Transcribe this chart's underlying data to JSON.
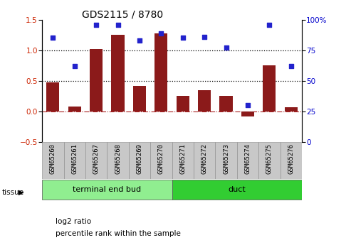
{
  "title": "GDS2115 / 8780",
  "samples": [
    "GSM65260",
    "GSM65261",
    "GSM65267",
    "GSM65268",
    "GSM65269",
    "GSM65270",
    "GSM65271",
    "GSM65272",
    "GSM65273",
    "GSM65274",
    "GSM65275",
    "GSM65276"
  ],
  "log2_ratio": [
    0.48,
    0.08,
    1.02,
    1.25,
    0.42,
    1.28,
    0.25,
    0.35,
    0.25,
    -0.08,
    0.75,
    0.07
  ],
  "percentile_rank": [
    85,
    62,
    96,
    96,
    83,
    89,
    85,
    86,
    77,
    30,
    96,
    62
  ],
  "ylim_left": [
    -0.5,
    1.5
  ],
  "ylim_right": [
    0,
    100
  ],
  "yticks_left": [
    -0.5,
    0.0,
    0.5,
    1.0,
    1.5
  ],
  "yticks_right": [
    0,
    25,
    50,
    75,
    100
  ],
  "hlines_dotted": [
    0.5,
    1.0
  ],
  "hline_dashdot": 0.0,
  "bar_color": "#8B1A1A",
  "dot_color": "#2222CC",
  "tissue_groups": [
    {
      "label": "terminal end bud",
      "start": 0,
      "end": 6,
      "color": "#90EE90"
    },
    {
      "label": "duct",
      "start": 6,
      "end": 12,
      "color": "#32CD32"
    }
  ],
  "background_color": "#ffffff",
  "title_fontsize": 10,
  "tick_fontsize": 7.5,
  "label_fontsize": 6.5,
  "tissue_fontsize": 8,
  "legend_fontsize": 7.5
}
